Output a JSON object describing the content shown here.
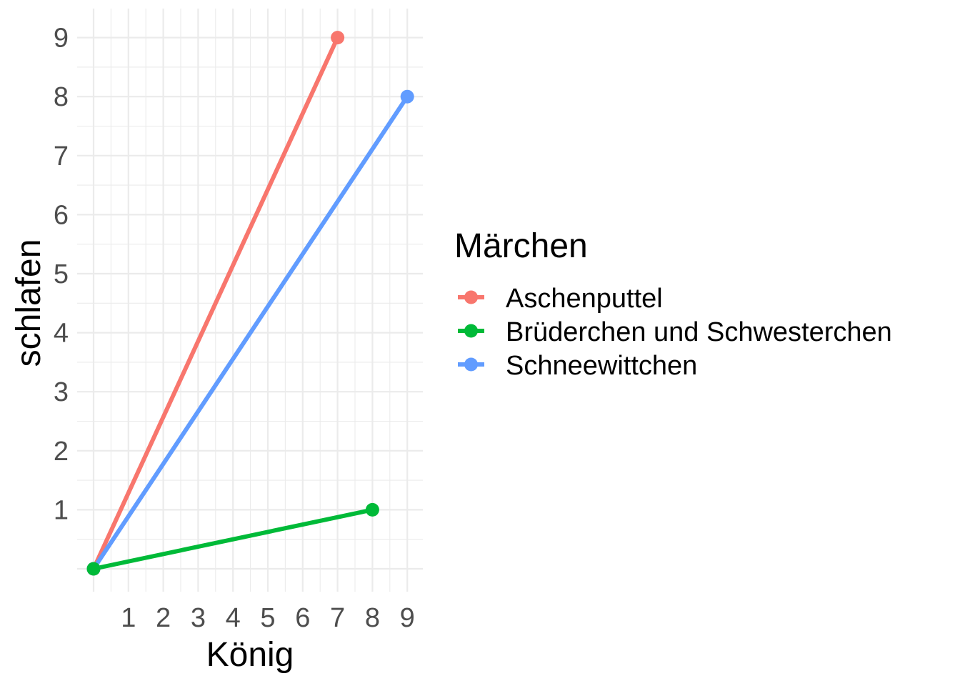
{
  "chart_data": {
    "type": "line",
    "xlabel": "König",
    "ylabel": "schlafen",
    "xlim": [
      0,
      9
    ],
    "ylim": [
      0,
      9
    ],
    "x_ticks": [
      1,
      2,
      3,
      4,
      5,
      6,
      7,
      8,
      9
    ],
    "y_ticks": [
      1,
      2,
      3,
      4,
      5,
      6,
      7,
      8,
      9
    ],
    "grid": true,
    "legend": {
      "title": "Märchen",
      "position": "right"
    },
    "series": [
      {
        "name": "Aschenputtel",
        "color": "#F8766D",
        "points": [
          [
            0,
            0
          ],
          [
            7,
            9
          ]
        ]
      },
      {
        "name": "Brüderchen und Schwesterchen",
        "color": "#00BA38",
        "points": [
          [
            0,
            0
          ],
          [
            8,
            1
          ]
        ]
      },
      {
        "name": "Schneewittchen",
        "color": "#619CFF",
        "points": [
          [
            0,
            0
          ],
          [
            9,
            8
          ]
        ]
      }
    ]
  }
}
